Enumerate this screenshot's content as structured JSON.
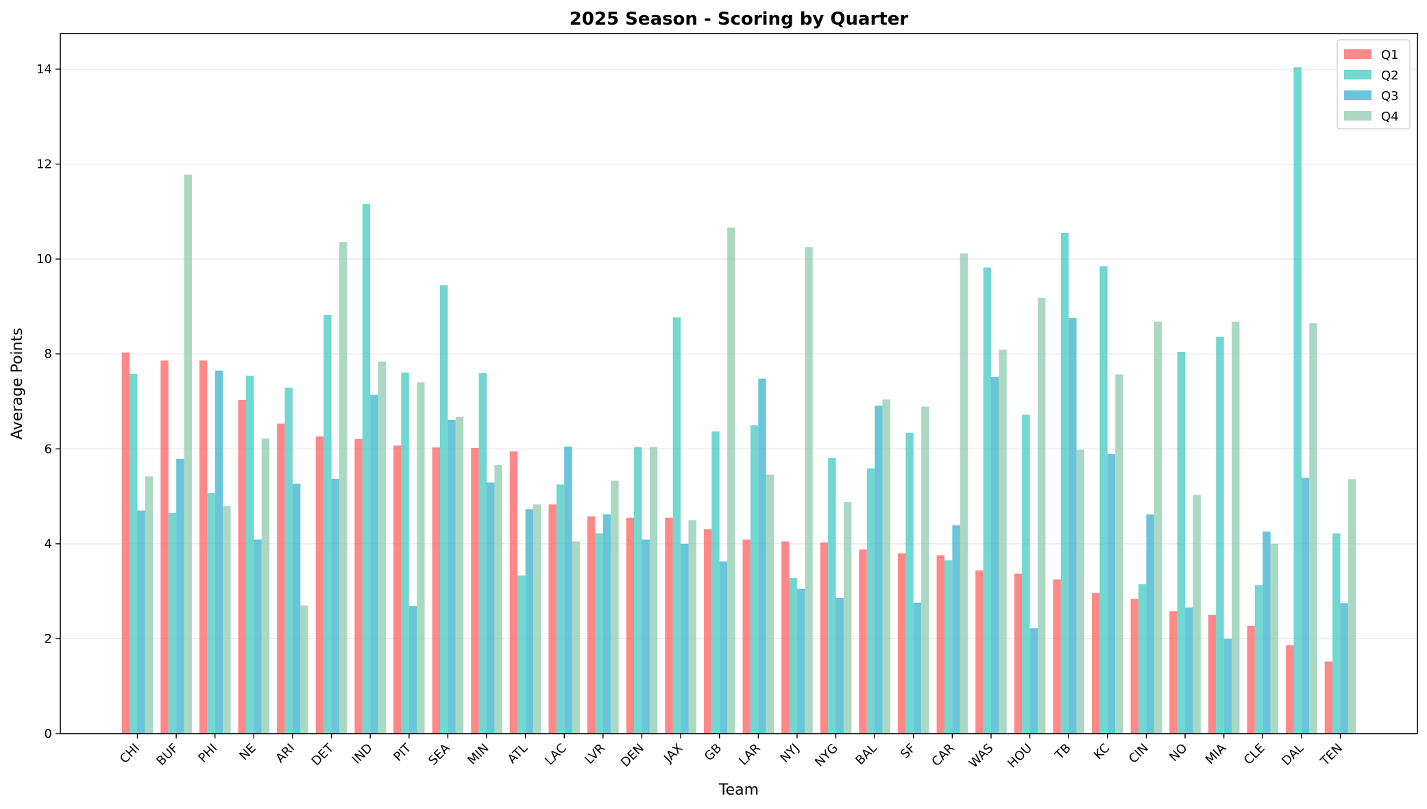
{
  "chart_data": {
    "type": "bar",
    "title": "2025 Season - Scoring by Quarter",
    "xlabel": "Team",
    "ylabel": "Average Points",
    "ylim": [
      0,
      14.75
    ],
    "yticks": [
      0,
      2,
      4,
      6,
      8,
      10,
      12,
      14
    ],
    "grid": "horizontal",
    "legend_position": "top-right",
    "categories": [
      "CHI",
      "BUF",
      "PHI",
      "NE",
      "ARI",
      "DET",
      "IND",
      "PIT",
      "SEA",
      "MIN",
      "ATL",
      "LAC",
      "LVR",
      "DEN",
      "JAX",
      "GB",
      "LAR",
      "NYJ",
      "NYG",
      "BAL",
      "SF",
      "CAR",
      "WAS",
      "HOU",
      "TB",
      "KC",
      "CIN",
      "NO",
      "MIA",
      "CLE",
      "DAL",
      "TEN"
    ],
    "series": [
      {
        "name": "Q1",
        "color": "#FF6B6B",
        "values": [
          8.03,
          7.86,
          7.86,
          7.03,
          6.53,
          6.26,
          6.21,
          6.07,
          6.03,
          6.02,
          5.95,
          4.83,
          4.58,
          4.55,
          4.55,
          4.31,
          4.09,
          4.05,
          4.03,
          3.88,
          3.8,
          3.76,
          3.44,
          3.37,
          3.25,
          2.96,
          2.84,
          2.58,
          2.5,
          2.27,
          1.86,
          1.52
        ]
      },
      {
        "name": "Q2",
        "color": "#4ECDC4",
        "values": [
          7.58,
          4.65,
          5.07,
          7.54,
          7.29,
          8.82,
          11.16,
          7.61,
          9.45,
          7.6,
          3.33,
          5.25,
          4.22,
          6.04,
          8.77,
          6.37,
          6.5,
          3.28,
          5.81,
          5.59,
          6.34,
          3.65,
          9.82,
          6.72,
          10.55,
          9.85,
          3.15,
          8.04,
          8.36,
          3.13,
          14.04,
          4.22
        ]
      },
      {
        "name": "Q3",
        "color": "#45B7D1",
        "values": [
          4.7,
          5.79,
          7.65,
          4.09,
          5.27,
          5.37,
          7.14,
          2.69,
          6.61,
          5.29,
          4.73,
          6.05,
          4.62,
          4.09,
          4.0,
          3.63,
          7.48,
          3.05,
          2.86,
          6.91,
          2.76,
          4.39,
          7.52,
          2.22,
          8.76,
          5.89,
          4.62,
          2.66,
          2.0,
          4.26,
          5.39,
          2.75
        ]
      },
      {
        "name": "Q4",
        "color": "#96CEB4",
        "values": [
          5.42,
          11.78,
          4.8,
          6.22,
          2.7,
          10.36,
          7.84,
          7.4,
          6.67,
          5.66,
          4.83,
          4.05,
          5.33,
          6.04,
          4.5,
          10.66,
          5.46,
          10.25,
          4.88,
          7.04,
          6.89,
          10.12,
          8.09,
          9.18,
          5.98,
          7.57,
          8.68,
          5.03,
          8.68,
          4.0,
          8.65,
          5.36
        ]
      }
    ]
  }
}
